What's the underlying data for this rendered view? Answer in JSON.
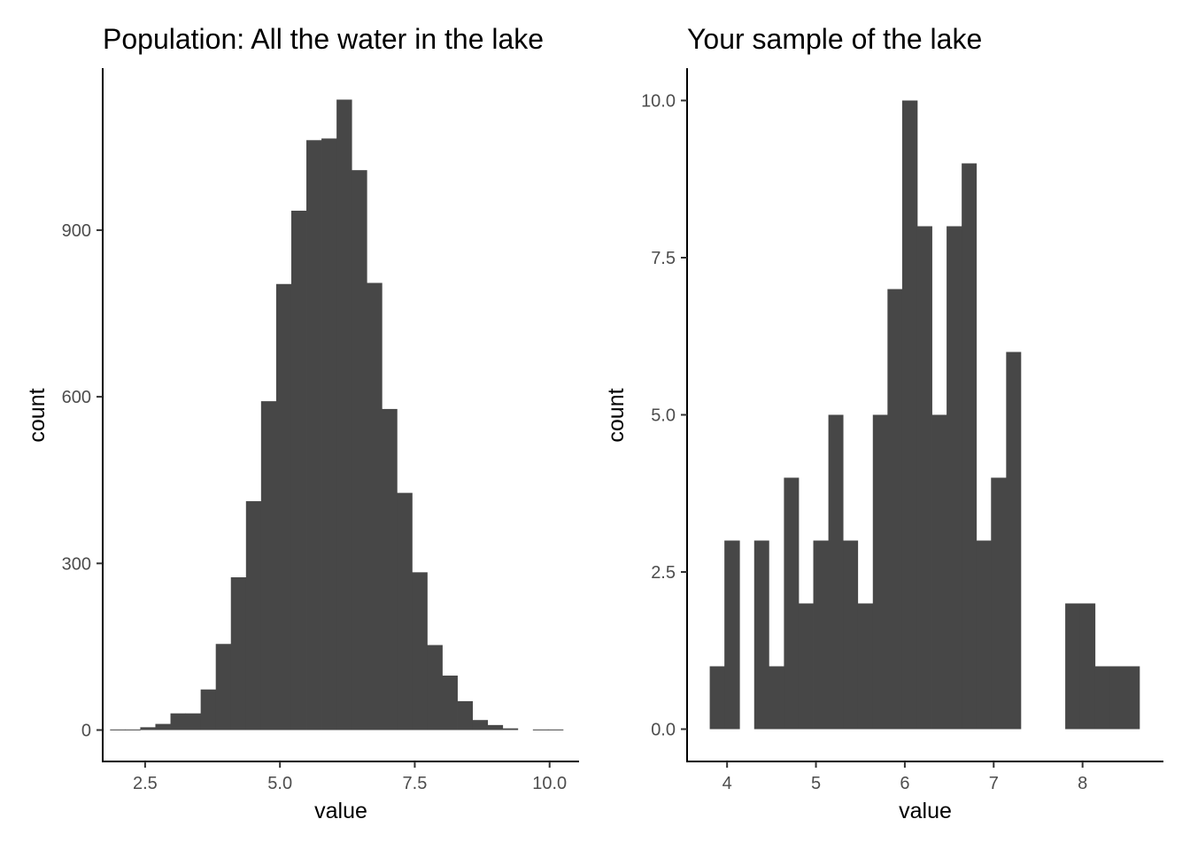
{
  "chart_data": [
    {
      "type": "bar",
      "title": "Population: All the water in the lake",
      "xlabel": "value",
      "ylabel": "count",
      "xlim": [
        1.73,
        10.53
      ],
      "ylim": [
        -55,
        1190
      ],
      "x_ticks": [
        2.5,
        5.0,
        7.5,
        10.0
      ],
      "x_tick_labels": [
        "2.5",
        "5.0",
        "7.5",
        "10.0"
      ],
      "y_ticks": [
        0,
        300,
        600,
        900
      ],
      "y_tick_labels": [
        "0",
        "300",
        "600",
        "900"
      ],
      "grid": false,
      "bar_color": "#474747",
      "bins": [
        {
          "x0": 1.85,
          "x1": 2.13,
          "count": 1
        },
        {
          "x0": 2.13,
          "x1": 2.41,
          "count": 1
        },
        {
          "x0": 2.41,
          "x1": 2.69,
          "count": 5
        },
        {
          "x0": 2.69,
          "x1": 2.97,
          "count": 11
        },
        {
          "x0": 2.97,
          "x1": 3.25,
          "count": 30
        },
        {
          "x0": 3.25,
          "x1": 3.53,
          "count": 30
        },
        {
          "x0": 3.53,
          "x1": 3.81,
          "count": 73
        },
        {
          "x0": 3.81,
          "x1": 4.09,
          "count": 155
        },
        {
          "x0": 4.09,
          "x1": 4.37,
          "count": 275
        },
        {
          "x0": 4.37,
          "x1": 4.65,
          "count": 412
        },
        {
          "x0": 4.65,
          "x1": 4.93,
          "count": 592
        },
        {
          "x0": 4.93,
          "x1": 5.21,
          "count": 803
        },
        {
          "x0": 5.21,
          "x1": 5.49,
          "count": 935
        },
        {
          "x0": 5.49,
          "x1": 5.77,
          "count": 1062
        },
        {
          "x0": 5.77,
          "x1": 6.05,
          "count": 1065
        },
        {
          "x0": 6.05,
          "x1": 6.33,
          "count": 1135
        },
        {
          "x0": 6.33,
          "x1": 6.61,
          "count": 1008
        },
        {
          "x0": 6.61,
          "x1": 6.89,
          "count": 805
        },
        {
          "x0": 6.89,
          "x1": 7.17,
          "count": 578
        },
        {
          "x0": 7.17,
          "x1": 7.45,
          "count": 427
        },
        {
          "x0": 7.45,
          "x1": 7.73,
          "count": 284
        },
        {
          "x0": 7.73,
          "x1": 8.01,
          "count": 153
        },
        {
          "x0": 8.01,
          "x1": 8.29,
          "count": 98
        },
        {
          "x0": 8.29,
          "x1": 8.57,
          "count": 52
        },
        {
          "x0": 8.57,
          "x1": 8.85,
          "count": 18
        },
        {
          "x0": 8.85,
          "x1": 9.13,
          "count": 9
        },
        {
          "x0": 9.13,
          "x1": 9.41,
          "count": 3
        },
        {
          "x0": 9.69,
          "x1": 9.97,
          "count": 1
        },
        {
          "x0": 9.97,
          "x1": 10.25,
          "count": 1
        }
      ]
    },
    {
      "type": "bar",
      "title": "Your sample of the lake",
      "xlabel": "value",
      "ylabel": "count",
      "xlim": [
        3.56,
        8.9
      ],
      "ylim": [
        -0.5,
        10.5
      ],
      "x_ticks": [
        4,
        5,
        6,
        7,
        8
      ],
      "x_tick_labels": [
        "4",
        "5",
        "6",
        "7",
        "8"
      ],
      "y_ticks": [
        0,
        2.5,
        5,
        7.5,
        10
      ],
      "y_tick_labels": [
        "0.0",
        "2.5",
        "5.0",
        "7.5",
        "10.0"
      ],
      "grid": false,
      "bar_color": "#474747",
      "bins": [
        {
          "x0": 3.805,
          "x1": 3.97,
          "count": 1
        },
        {
          "x0": 3.97,
          "x1": 4.14,
          "count": 3
        },
        {
          "x0": 4.14,
          "x1": 4.305,
          "count": 0
        },
        {
          "x0": 4.305,
          "x1": 4.47,
          "count": 3
        },
        {
          "x0": 4.47,
          "x1": 4.64,
          "count": 1
        },
        {
          "x0": 4.64,
          "x1": 4.805,
          "count": 4
        },
        {
          "x0": 4.805,
          "x1": 4.97,
          "count": 2
        },
        {
          "x0": 4.97,
          "x1": 5.14,
          "count": 3
        },
        {
          "x0": 5.14,
          "x1": 5.305,
          "count": 5
        },
        {
          "x0": 5.305,
          "x1": 5.47,
          "count": 3
        },
        {
          "x0": 5.47,
          "x1": 5.64,
          "count": 2
        },
        {
          "x0": 5.64,
          "x1": 5.805,
          "count": 5
        },
        {
          "x0": 5.805,
          "x1": 5.97,
          "count": 7
        },
        {
          "x0": 5.97,
          "x1": 6.14,
          "count": 10
        },
        {
          "x0": 6.14,
          "x1": 6.305,
          "count": 8
        },
        {
          "x0": 6.305,
          "x1": 6.47,
          "count": 5
        },
        {
          "x0": 6.47,
          "x1": 6.64,
          "count": 8
        },
        {
          "x0": 6.64,
          "x1": 6.805,
          "count": 9
        },
        {
          "x0": 6.805,
          "x1": 6.97,
          "count": 3
        },
        {
          "x0": 6.97,
          "x1": 7.14,
          "count": 4
        },
        {
          "x0": 7.14,
          "x1": 7.305,
          "count": 6
        },
        {
          "x0": 7.305,
          "x1": 7.47,
          "count": 0
        },
        {
          "x0": 7.47,
          "x1": 7.64,
          "count": 0
        },
        {
          "x0": 7.64,
          "x1": 7.805,
          "count": 0
        },
        {
          "x0": 7.805,
          "x1": 7.97,
          "count": 2
        },
        {
          "x0": 7.97,
          "x1": 8.14,
          "count": 2
        },
        {
          "x0": 8.14,
          "x1": 8.305,
          "count": 1
        },
        {
          "x0": 8.305,
          "x1": 8.47,
          "count": 1
        },
        {
          "x0": 8.47,
          "x1": 8.64,
          "count": 1
        }
      ]
    }
  ]
}
